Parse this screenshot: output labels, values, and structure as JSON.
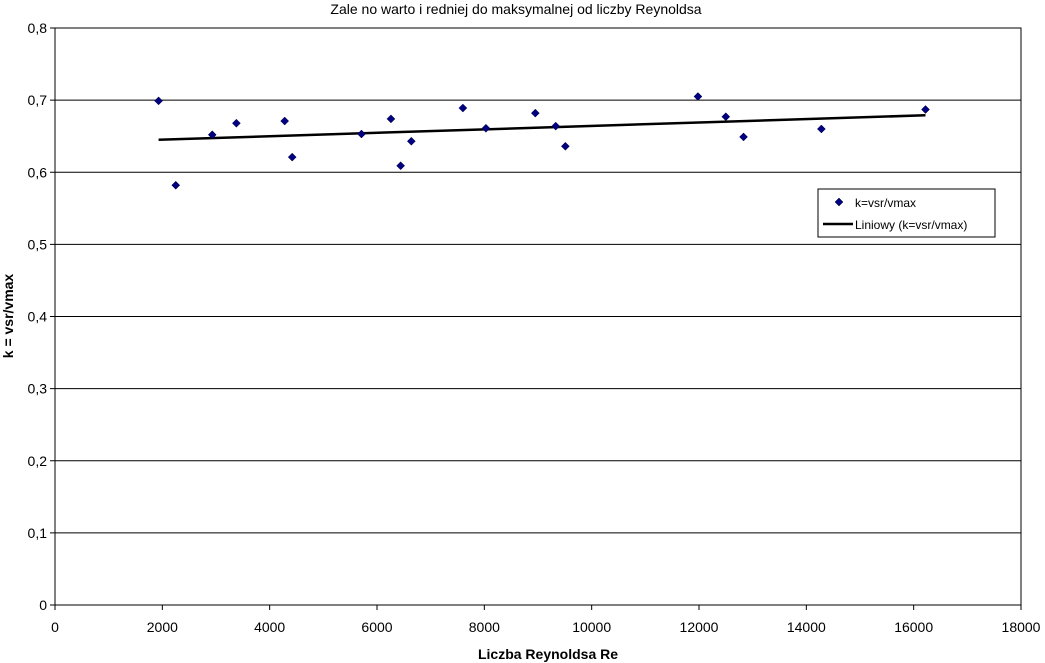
{
  "chart_data": {
    "type": "scatter",
    "title": "Zale  no     warto    i   redniej do maksymalnej od liczby Reynoldsa",
    "xlabel": "Liczba Reynoldsa Re",
    "ylabel": "k = vsr/vmax",
    "xlim": [
      0,
      18000
    ],
    "ylim": [
      0,
      0.8
    ],
    "xticks": [
      0,
      2000,
      4000,
      6000,
      8000,
      10000,
      12000,
      14000,
      16000,
      18000
    ],
    "xtick_labels": [
      "0",
      "2000",
      "4000",
      "6000",
      "8000",
      "10000",
      "12000",
      "14000",
      "16000",
      "18000"
    ],
    "yticks": [
      0,
      0.1,
      0.2,
      0.3,
      0.4,
      0.5,
      0.6,
      0.7,
      0.8
    ],
    "ytick_labels": [
      "0",
      "0,1",
      "0,2",
      "0,3",
      "0,4",
      "0,5",
      "0,6",
      "0,7",
      "0,8"
    ],
    "grid": "horizontal",
    "legend_position": "right",
    "series": [
      {
        "name": "k=vsr/vmax",
        "marker": "diamond",
        "color": "#000080",
        "x": [
          1930,
          2250,
          2930,
          3380,
          4280,
          4420,
          5710,
          6260,
          6440,
          6640,
          7600,
          8030,
          8950,
          9330,
          9510,
          11980,
          12500,
          12830,
          14280,
          16220
        ],
        "y": [
          0.699,
          0.582,
          0.652,
          0.668,
          0.671,
          0.621,
          0.653,
          0.674,
          0.609,
          0.643,
          0.689,
          0.661,
          0.682,
          0.664,
          0.636,
          0.705,
          0.677,
          0.649,
          0.66,
          0.687
        ]
      },
      {
        "name": "Liniowy (k=vsr/vmax)",
        "type": "line",
        "color": "#000000",
        "x": [
          1930,
          16220
        ],
        "y": [
          0.645,
          0.679
        ]
      }
    ]
  }
}
